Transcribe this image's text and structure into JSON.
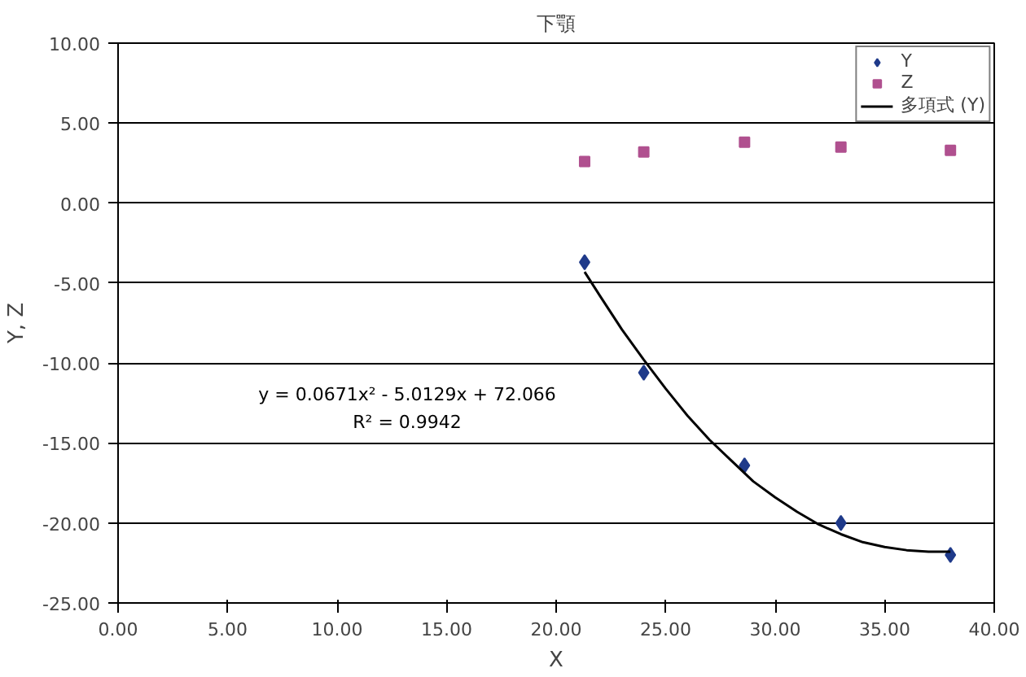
{
  "chart_data": {
    "type": "scatter",
    "title": "下顎",
    "xlabel": "X",
    "ylabel": "Y, Z",
    "xlim": [
      0,
      40
    ],
    "xticks": [
      {
        "value": 0,
        "label": "0.00"
      },
      {
        "value": 5,
        "label": "5.00"
      },
      {
        "value": 10,
        "label": "10.00"
      },
      {
        "value": 15,
        "label": "15.00"
      },
      {
        "value": 20,
        "label": "20.00"
      },
      {
        "value": 25,
        "label": "25.00"
      },
      {
        "value": 30,
        "label": "30.00"
      },
      {
        "value": 35,
        "label": "35.00"
      },
      {
        "value": 40,
        "label": "40.00"
      }
    ],
    "ylim": [
      -25,
      10
    ],
    "yticks": [
      {
        "value": -25,
        "label": "-25.00"
      },
      {
        "value": -20,
        "label": "-20.00"
      },
      {
        "value": -15,
        "label": "-15.00"
      },
      {
        "value": -10,
        "label": "-10.00"
      },
      {
        "value": -5,
        "label": "-5.00"
      },
      {
        "value": 0,
        "label": "0.00"
      },
      {
        "value": 5,
        "label": "5.00"
      },
      {
        "value": 10,
        "label": "10.00"
      }
    ],
    "grid": "y",
    "legend": "top right",
    "series": [
      {
        "name": "Y",
        "color": "#1f3a8a",
        "marker": "diamond",
        "x": [
          21.3,
          24.0,
          28.6,
          33.0,
          38.0
        ],
        "values": [
          -3.7,
          -10.6,
          -16.4,
          -20.0,
          -22.0
        ]
      },
      {
        "name": "Z",
        "color": "#b0508f",
        "marker": "square",
        "x": [
          21.3,
          24.0,
          28.6,
          33.0,
          38.0
        ],
        "values": [
          2.6,
          3.2,
          3.8,
          3.5,
          3.3
        ]
      },
      {
        "name": "多項式 (Y)",
        "type": "line",
        "color": "#000000",
        "marker": "none",
        "x": [
          21.3,
          22,
          23,
          24,
          25,
          26,
          27,
          28,
          29,
          30,
          31,
          32,
          33,
          34,
          35,
          36,
          37,
          38
        ],
        "values": [
          -4.3,
          -5.8,
          -7.9,
          -9.8,
          -11.6,
          -13.3,
          -14.8,
          -16.1,
          -17.4,
          -18.4,
          -19.3,
          -20.1,
          -20.7,
          -21.2,
          -21.5,
          -21.7,
          -21.8,
          -21.8
        ]
      }
    ],
    "annotations": [
      "y = 0.0671x² - 5.0129x + 72.066",
      "R² = 0.9942"
    ]
  }
}
